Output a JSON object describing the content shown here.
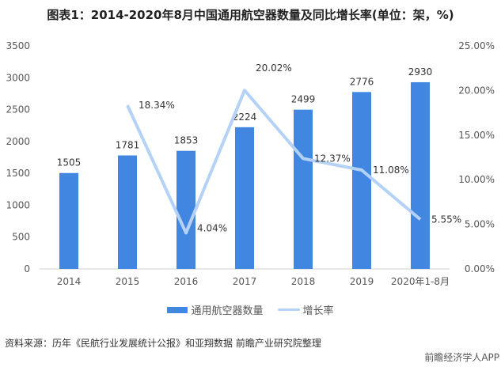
{
  "title": "图表1：2014-2020年8月中国通用航空器数量及同比增长率(单位：架，%)",
  "source": "资料来源：历年《民航行业发展统计公报》和亚翔数据 前瞻产业研究院整理",
  "brand": "前瞻经济学人APP",
  "chart_data": {
    "type": "bar+line",
    "title": "图表1：2014-2020年8月中国通用航空器数量及同比增长率(单位：架，%)",
    "categories": [
      "2014",
      "2015",
      "2016",
      "2017",
      "2018",
      "2019",
      "2020年1-8月"
    ],
    "series": [
      {
        "name": "通用航空器数量",
        "type": "bar",
        "axis": "left",
        "color": "#4186e0",
        "values": [
          1505,
          1781,
          1853,
          2224,
          2499,
          2776,
          2930
        ],
        "labels": [
          "1505",
          "1781",
          "1853",
          "2224",
          "2499",
          "2776",
          "2930"
        ]
      },
      {
        "name": "增长率",
        "type": "line",
        "axis": "right",
        "color": "#b4d2f6",
        "values": [
          null,
          18.34,
          4.04,
          20.02,
          12.37,
          11.08,
          5.55
        ],
        "labels": [
          "",
          "18.34%",
          "4.04%",
          "20.02%",
          "12.37%",
          "11.08%",
          "5.55%"
        ]
      }
    ],
    "left_axis": {
      "range": [
        0,
        3500
      ],
      "ticks": [
        "0",
        "500",
        "1000",
        "1500",
        "2000",
        "2500",
        "3000",
        "3500"
      ]
    },
    "right_axis": {
      "range": [
        0,
        25
      ],
      "ticks": [
        "0.00%",
        "5.00%",
        "10.00%",
        "15.00%",
        "20.00%",
        "25.00%"
      ]
    },
    "grid": false,
    "legend": "bottom"
  }
}
